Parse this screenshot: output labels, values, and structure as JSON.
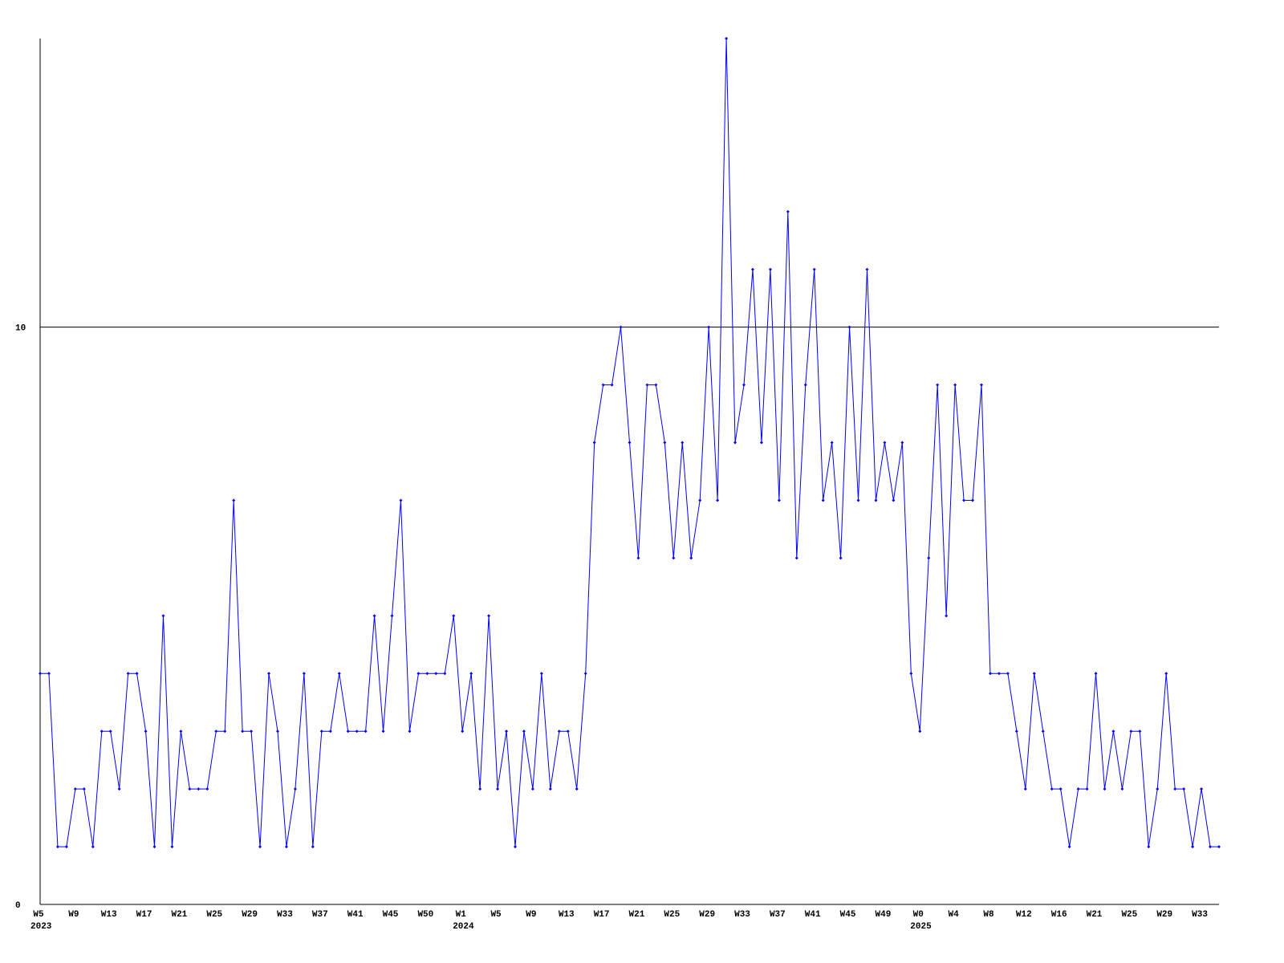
{
  "chart_data": {
    "type": "line",
    "categories": [
      "W5",
      null,
      null,
      null,
      "W9",
      null,
      null,
      null,
      "W13",
      null,
      null,
      null,
      "W17",
      null,
      null,
      null,
      "W21",
      null,
      null,
      null,
      "W25",
      null,
      null,
      null,
      "W29",
      null,
      null,
      null,
      "W33",
      null,
      null,
      null,
      "W37",
      null,
      null,
      null,
      "W41",
      null,
      null,
      null,
      "W45",
      null,
      null,
      null,
      "W50",
      null,
      null,
      null,
      "W1",
      null,
      null,
      null,
      "W5",
      null,
      null,
      null,
      "W9",
      null,
      null,
      null,
      "W13",
      null,
      null,
      null,
      "W17",
      null,
      null,
      null,
      "W21",
      null,
      null,
      null,
      "W25",
      null,
      null,
      null,
      "W29",
      null,
      null,
      null,
      "W33",
      null,
      null,
      null,
      "W37",
      null,
      null,
      null,
      "W41",
      null,
      null,
      null,
      "W45",
      null,
      null,
      null,
      "W49",
      null,
      null,
      null,
      "W0",
      null,
      null,
      null,
      "W4",
      null,
      null,
      null,
      "W8",
      null,
      null,
      null,
      "W12",
      null,
      null,
      null,
      "W16",
      null,
      null,
      null,
      "W21",
      null,
      null,
      null,
      "W25",
      null,
      null,
      null,
      "W29",
      null,
      null,
      null,
      "W33",
      null,
      null
    ],
    "category_years": [
      "2023",
      null,
      null,
      null,
      null,
      null,
      null,
      null,
      null,
      null,
      null,
      null,
      null,
      null,
      null,
      null,
      null,
      null,
      null,
      null,
      null,
      null,
      null,
      null,
      null,
      null,
      null,
      null,
      null,
      null,
      null,
      null,
      null,
      null,
      null,
      null,
      null,
      null,
      null,
      null,
      null,
      null,
      null,
      null,
      null,
      null,
      null,
      null,
      "2024",
      null,
      null,
      null,
      null,
      null,
      null,
      null,
      null,
      null,
      null,
      null,
      null,
      null,
      null,
      null,
      null,
      null,
      null,
      null,
      null,
      null,
      null,
      null,
      null,
      null,
      null,
      null,
      null,
      null,
      null,
      null,
      null,
      null,
      null,
      null,
      null,
      null,
      null,
      null,
      null,
      null,
      null,
      null,
      null,
      null,
      null,
      null,
      null,
      null,
      null,
      null,
      "2025",
      null,
      null,
      null,
      null,
      null,
      null,
      null,
      null,
      null,
      null,
      null,
      null,
      null,
      null,
      null,
      null,
      null,
      null,
      null,
      null,
      null,
      null,
      null,
      null,
      null,
      null,
      null,
      null,
      null,
      null,
      null,
      null,
      null,
      null
    ],
    "series": [
      {
        "color": "#0000ff",
        "values": [
          4,
          4,
          1,
          1,
          2,
          2,
          1,
          3,
          3,
          2,
          4,
          4,
          3,
          1,
          5,
          1,
          3,
          2,
          2,
          2,
          3,
          3,
          7,
          3,
          3,
          1,
          4,
          3,
          1,
          2,
          4,
          1,
          3,
          3,
          4,
          3,
          3,
          3,
          5,
          3,
          5,
          7,
          3,
          4,
          4,
          4,
          4,
          5,
          3,
          4,
          2,
          5,
          2,
          3,
          1,
          3,
          2,
          4,
          2,
          3,
          3,
          2,
          4,
          8,
          9,
          9,
          10,
          8,
          6,
          9,
          9,
          8,
          6,
          8,
          6,
          7,
          10,
          7,
          15,
          8,
          9,
          11,
          8,
          11,
          7,
          12,
          6,
          9,
          11,
          7,
          8,
          6,
          10,
          7,
          11,
          7,
          8,
          7,
          8,
          4,
          3,
          6,
          9,
          5,
          9,
          7,
          7,
          9,
          4,
          4,
          4,
          3,
          2,
          4,
          3,
          2,
          2,
          1,
          2,
          2,
          4,
          2,
          3,
          2,
          3,
          3,
          1,
          2,
          4,
          2,
          2,
          1,
          2,
          1,
          1
        ]
      }
    ],
    "ylim": [
      0,
      15
    ],
    "yticks": [
      0,
      10
    ],
    "grid": true
  }
}
